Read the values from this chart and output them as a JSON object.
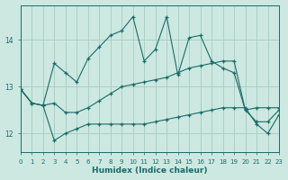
{
  "xlabel": "Humidex (Indice chaleur)",
  "ylabel": "",
  "bg_color": "#cce8e0",
  "grid_color": "#aacfc8",
  "line_color": "#1a6b6b",
  "hours": [
    0,
    1,
    2,
    3,
    4,
    5,
    6,
    7,
    8,
    9,
    10,
    11,
    12,
    13,
    14,
    15,
    16,
    17,
    18,
    19,
    20,
    21,
    22,
    23
  ],
  "max_line": [
    12.95,
    12.65,
    12.6,
    13.5,
    13.3,
    13.1,
    13.6,
    13.85,
    14.1,
    14.2,
    14.5,
    13.55,
    13.8,
    14.5,
    13.25,
    14.05,
    14.1,
    13.55,
    13.4,
    13.3,
    12.5,
    12.55,
    12.55,
    12.55
  ],
  "mean_line": [
    12.95,
    12.65,
    12.6,
    12.65,
    12.45,
    12.45,
    12.55,
    12.7,
    12.85,
    13.0,
    13.05,
    13.1,
    13.15,
    13.2,
    13.3,
    13.4,
    13.45,
    13.5,
    13.55,
    13.55,
    12.5,
    12.25,
    12.25,
    12.5
  ],
  "min_line": [
    12.95,
    12.65,
    12.6,
    11.85,
    12.0,
    12.1,
    12.2,
    12.2,
    12.2,
    12.2,
    12.2,
    12.2,
    12.25,
    12.3,
    12.35,
    12.4,
    12.45,
    12.5,
    12.55,
    12.55,
    12.55,
    12.2,
    12.0,
    12.4
  ],
  "ylim": [
    11.6,
    14.75
  ],
  "yticks": [
    12,
    13,
    14
  ],
  "xlim": [
    0,
    23
  ]
}
